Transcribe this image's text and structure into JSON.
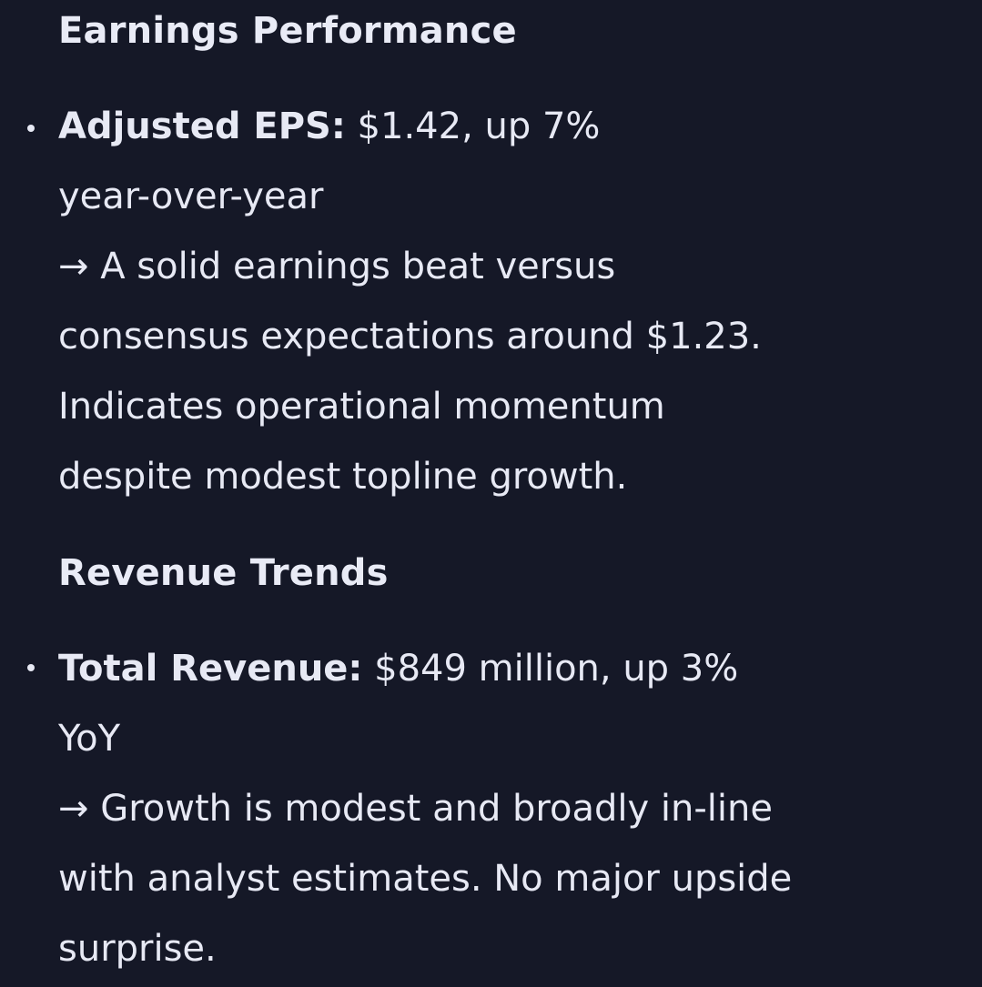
{
  "earnings": {
    "heading": "Earnings Performance",
    "bullet": {
      "term": "Adjusted EPS:",
      "value_line_1": " $1.42, up 7%",
      "value_line_2": "year-over-year",
      "note_lines": [
        "→ A solid earnings beat versus",
        "consensus expectations around $1.23.",
        "Indicates operational momentum",
        "despite modest topline growth."
      ]
    }
  },
  "revenue": {
    "heading": "Revenue Trends",
    "bullet": {
      "term": "Total Revenue:",
      "value_line_1": " $849 million, up 3%",
      "value_line_2": "YoY",
      "note_lines": [
        "→ Growth is modest and broadly in-line",
        "with analyst estimates. No major upside",
        "surprise."
      ]
    }
  },
  "colors": {
    "background": "#151827",
    "text": "#e7e9f4"
  }
}
